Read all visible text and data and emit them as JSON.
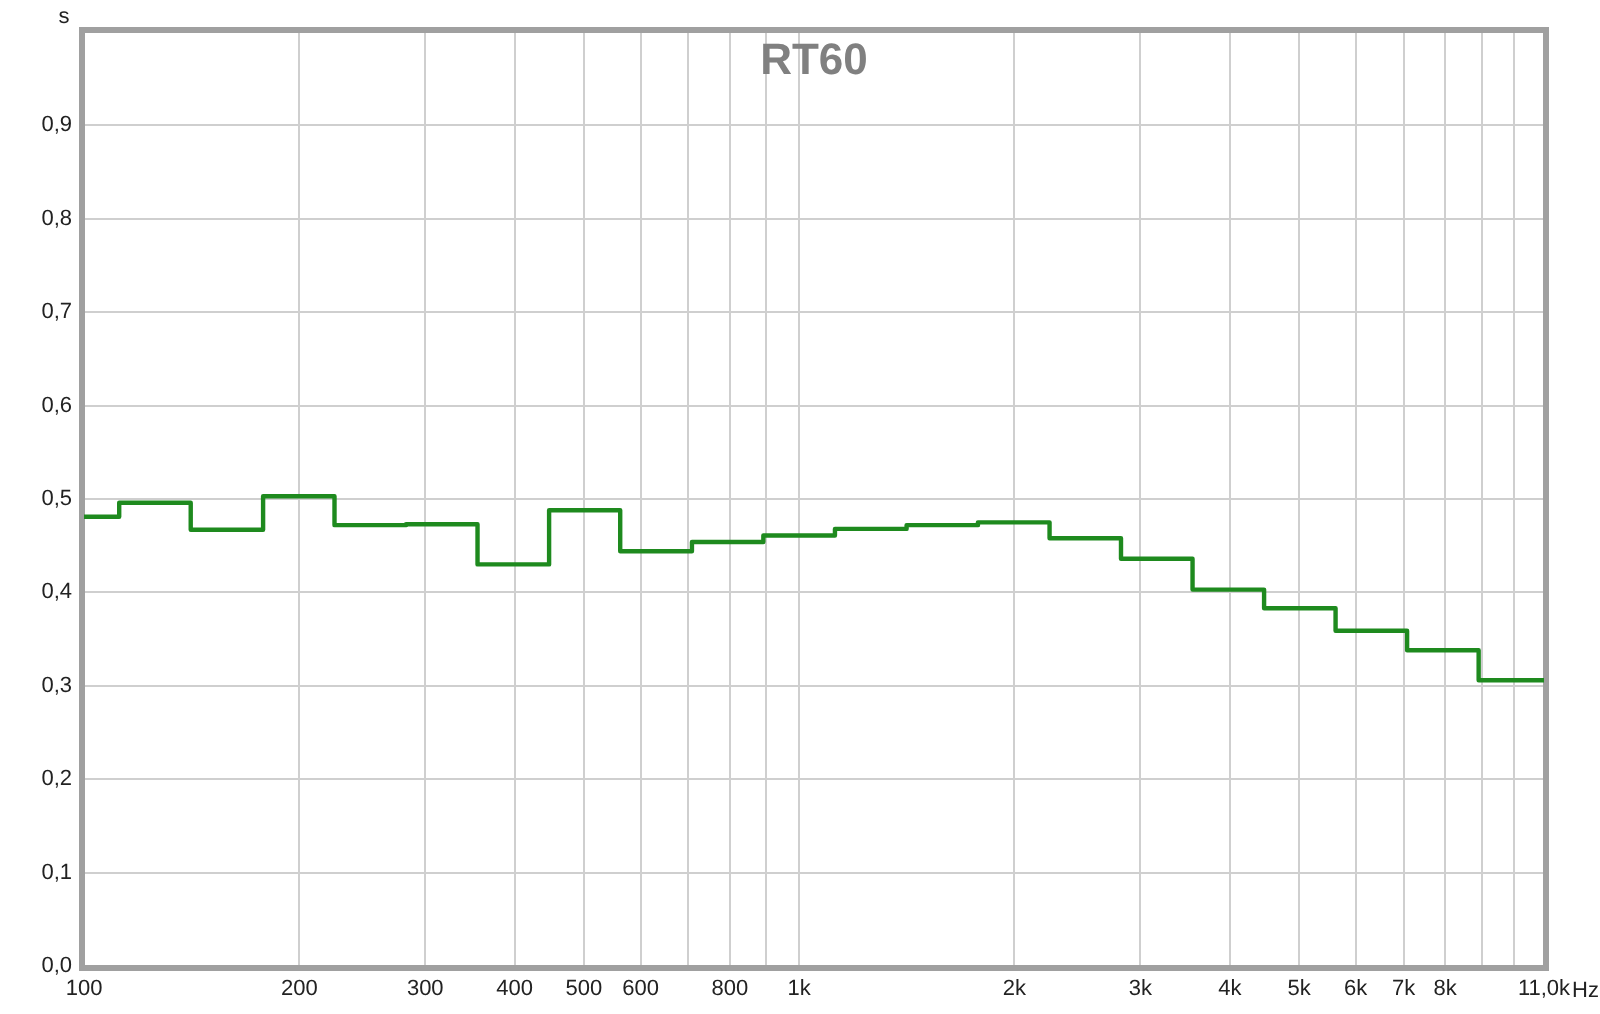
{
  "chart_data": {
    "type": "step",
    "title": "RT60",
    "xlabel": "Hz",
    "ylabel": "s",
    "x": [
      100,
      112,
      141,
      178,
      224,
      282,
      355,
      447,
      562,
      708,
      891,
      1122,
      1413,
      1778,
      2239,
      2818,
      3548,
      4467,
      5623,
      7079,
      8913,
      11000
    ],
    "series": [
      {
        "color": "#1e8a1e",
        "values": [
          0.481,
          0.496,
          0.467,
          0.503,
          0.472,
          0.473,
          0.43,
          0.488,
          0.444,
          0.454,
          0.461,
          0.468,
          0.472,
          0.475,
          0.458,
          0.436,
          0.403,
          0.383,
          0.359,
          0.338,
          0.306,
          0.306
        ]
      }
    ],
    "log": "x",
    "xlim": [
      100,
      11000
    ],
    "xticks": [
      100,
      200,
      300,
      400,
      500,
      600,
      {
        "value": 700,
        "label": null
      },
      800,
      {
        "value": 900,
        "label": null
      },
      {
        "value": 1000,
        "label": "1k"
      },
      {
        "value": 2000,
        "label": "2k"
      },
      {
        "value": 3000,
        "label": "3k"
      },
      {
        "value": 4000,
        "label": "4k"
      },
      {
        "value": 5000,
        "label": "5k"
      },
      {
        "value": 6000,
        "label": "6k"
      },
      {
        "value": 7000,
        "label": "7k"
      },
      {
        "value": 8000,
        "label": "8k"
      },
      {
        "value": 9000,
        "label": null
      },
      {
        "value": 10000,
        "label": null
      },
      {
        "value": 11000,
        "label": "11,0k"
      }
    ],
    "ylim": [
      0,
      1
    ],
    "yticks": [
      {
        "value": 0,
        "label": "0,0"
      },
      {
        "value": 0.1,
        "label": "0,1"
      },
      {
        "value": 0.2,
        "label": "0,2"
      },
      {
        "value": 0.3,
        "label": "0,3"
      },
      {
        "value": 0.4,
        "label": "0,4"
      },
      {
        "value": 0.5,
        "label": "0,5"
      },
      {
        "value": 0.6,
        "label": "0,6"
      },
      {
        "value": 0.7,
        "label": "0,7"
      },
      {
        "value": 0.8,
        "label": "0,8"
      },
      {
        "value": 0.9,
        "label": "0,9"
      }
    ],
    "grid": true,
    "legend": false
  }
}
